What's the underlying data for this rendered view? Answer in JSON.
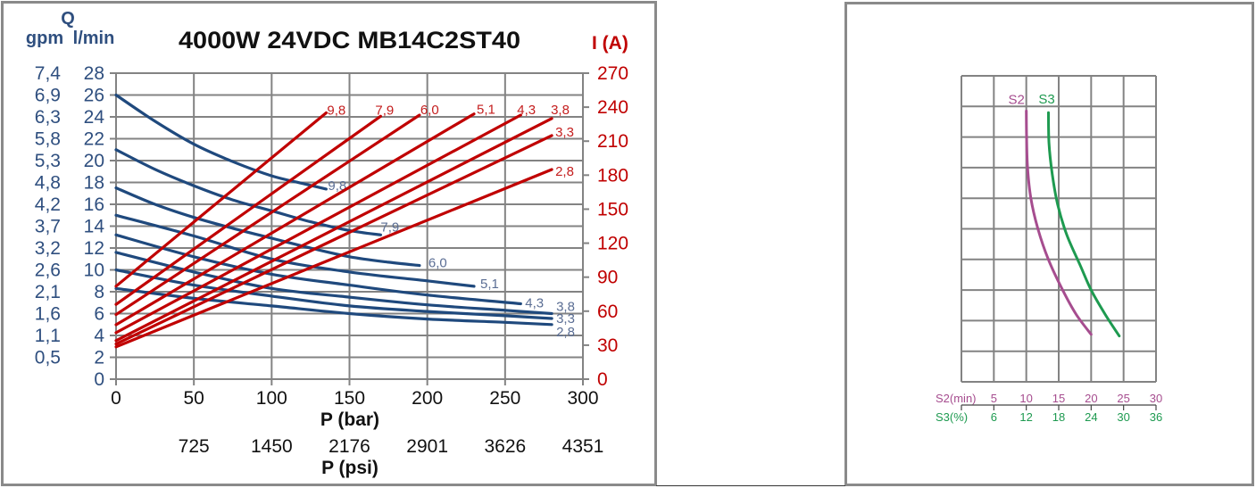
{
  "colors": {
    "flow_axis": "#2f4f7f",
    "current_axis": "#c00000",
    "flow_curve": "#1f497d",
    "current_curve": "#c00000",
    "flow_label": "#5b6e94",
    "current_label": "#c41e1e",
    "s2": "#a64d8f",
    "s3": "#1e9a50",
    "grid": "#838383",
    "panel_border": "#8a8a8a"
  },
  "chart_data": [
    {
      "type": "line",
      "title": "4000W 24VDC MB14C2ST40",
      "xlabel": "P (bar)",
      "x2label": "P (psi)",
      "ylabel": "Q",
      "ylabel_units": [
        "gpm",
        "l/min"
      ],
      "y2label": "I (A)",
      "xlim": [
        0,
        300
      ],
      "ylim": [
        0,
        28
      ],
      "y2lim": [
        0,
        270
      ],
      "grid": true,
      "x_ticks": [
        "0",
        "50",
        "100",
        "150",
        "200",
        "250",
        "300"
      ],
      "x2_ticks": [
        "",
        "725",
        "1450",
        "2176",
        "2901",
        "3626",
        "4351"
      ],
      "y_ticks_lpm": [
        "0",
        "2",
        "4",
        "6",
        "8",
        "10",
        "12",
        "14",
        "16",
        "18",
        "20",
        "22",
        "24",
        "26",
        "28"
      ],
      "y_ticks_gpm": [
        "",
        "0,5",
        "1,1",
        "1,6",
        "2,1",
        "2,6",
        "3,2",
        "3,7",
        "4,2",
        "4,8",
        "5,3",
        "5,8",
        "6,3",
        "6,9",
        "7,4"
      ],
      "y2_ticks": [
        "0",
        "30",
        "60",
        "90",
        "120",
        "150",
        "180",
        "210",
        "240",
        "270"
      ],
      "series": [
        {
          "name": "9,8",
          "kind": "flow",
          "axis": "left",
          "color": "#1f497d",
          "label_color": "#5b6e94",
          "label_offset": [
            2,
            1
          ],
          "points": [
            [
              0,
              26
            ],
            [
              25,
              23.6
            ],
            [
              50,
              21.5
            ],
            [
              75,
              19.9
            ],
            [
              100,
              18.6
            ],
            [
              120,
              17.9
            ],
            [
              135,
              17.4
            ]
          ]
        },
        {
          "name": "7,9",
          "kind": "flow",
          "axis": "left",
          "color": "#1f497d",
          "label_color": "#5b6e94",
          "label_offset": [
            0,
            -4
          ],
          "points": [
            [
              0,
              21
            ],
            [
              25,
              19.2
            ],
            [
              50,
              17.7
            ],
            [
              75,
              16.4
            ],
            [
              100,
              15.4
            ],
            [
              125,
              14.4
            ],
            [
              150,
              13.6
            ],
            [
              170,
              13.2
            ]
          ]
        },
        {
          "name": "6,0",
          "kind": "flow",
          "axis": "left",
          "color": "#1f497d",
          "label_color": "#5b6e94",
          "label_offset": [
            10,
            2
          ],
          "points": [
            [
              0,
              17.5
            ],
            [
              25,
              16.0
            ],
            [
              50,
              14.8
            ],
            [
              75,
              13.8
            ],
            [
              100,
              12.9
            ],
            [
              125,
              12.0
            ],
            [
              150,
              11.2
            ],
            [
              175,
              10.7
            ],
            [
              195,
              10.4
            ]
          ]
        },
        {
          "name": "5,1",
          "kind": "flow",
          "axis": "left",
          "color": "#1f497d",
          "label_color": "#5b6e94",
          "label_offset": [
            7,
            2
          ],
          "points": [
            [
              0,
              15
            ],
            [
              50,
              13.1
            ],
            [
              100,
              11.0
            ],
            [
              150,
              9.8
            ],
            [
              200,
              9.0
            ],
            [
              230,
              8.5
            ]
          ]
        },
        {
          "name": "4,3",
          "kind": "flow",
          "axis": "left",
          "color": "#1f497d",
          "label_color": "#5b6e94",
          "label_offset": [
            5,
            4
          ],
          "points": [
            [
              0,
              13.2
            ],
            [
              50,
              11.2
            ],
            [
              100,
              9.6
            ],
            [
              150,
              8.6
            ],
            [
              200,
              7.7
            ],
            [
              260,
              6.9
            ]
          ]
        },
        {
          "name": "3,8",
          "kind": "flow",
          "axis": "left",
          "color": "#1f497d",
          "label_color": "#5b6e94",
          "label_offset": [
            5,
            -3
          ],
          "points": [
            [
              0,
              11.6
            ],
            [
              50,
              9.8
            ],
            [
              100,
              8.3
            ],
            [
              150,
              7.5
            ],
            [
              200,
              6.8
            ],
            [
              250,
              6.3
            ],
            [
              280,
              6.0
            ]
          ]
        },
        {
          "name": "3,3",
          "kind": "flow",
          "axis": "left",
          "color": "#1f497d",
          "label_color": "#5b6e94",
          "label_offset": [
            5,
            5
          ],
          "points": [
            [
              0,
              10
            ],
            [
              50,
              8.6
            ],
            [
              100,
              7.6
            ],
            [
              150,
              6.7
            ],
            [
              200,
              6.2
            ],
            [
              250,
              5.8
            ],
            [
              280,
              5.55
            ]
          ]
        },
        {
          "name": "2,8",
          "kind": "flow",
          "axis": "left",
          "color": "#1f497d",
          "label_color": "#5b6e94",
          "label_offset": [
            5,
            13
          ],
          "points": [
            [
              0,
              8.3
            ],
            [
              50,
              7.4
            ],
            [
              100,
              6.7
            ],
            [
              150,
              6.0
            ],
            [
              200,
              5.5
            ],
            [
              250,
              5.2
            ],
            [
              280,
              5.0
            ]
          ]
        },
        {
          "name": "9,8",
          "kind": "current",
          "axis": "right",
          "color": "#c00000",
          "label_color": "#c41e1e",
          "label_offset": [
            1,
            2
          ],
          "points": [
            [
              0,
              82
            ],
            [
              135,
              235
            ]
          ]
        },
        {
          "name": "7,9",
          "kind": "current",
          "axis": "right",
          "color": "#c00000",
          "label_color": "#c41e1e",
          "label_offset": [
            -6,
            -2
          ],
          "points": [
            [
              0,
              66
            ],
            [
              170,
              232
            ]
          ]
        },
        {
          "name": "6,0",
          "kind": "current",
          "axis": "right",
          "color": "#c00000",
          "label_color": "#c41e1e",
          "label_offset": [
            1,
            -1
          ],
          "points": [
            [
              0,
              57
            ],
            [
              195,
              233
            ]
          ]
        },
        {
          "name": "5,1",
          "kind": "current",
          "axis": "right",
          "color": "#c00000",
          "label_color": "#c41e1e",
          "label_offset": [
            3,
            0
          ],
          "points": [
            [
              0,
              48
            ],
            [
              230,
              234
            ]
          ]
        },
        {
          "name": "4,3",
          "kind": "current",
          "axis": "right",
          "color": "#c00000",
          "label_color": "#c41e1e",
          "label_offset": [
            -4,
            -1
          ],
          "points": [
            [
              0,
              41
            ],
            [
              260,
              233
            ]
          ]
        },
        {
          "name": "3,8",
          "kind": "current",
          "axis": "right",
          "color": "#c00000",
          "label_color": "#c41e1e",
          "label_offset": [
            -1,
            -5
          ],
          "points": [
            [
              0,
              34
            ],
            [
              280,
              230
            ]
          ]
        },
        {
          "name": "3,3",
          "kind": "current",
          "axis": "right",
          "color": "#c00000",
          "label_color": "#c41e1e",
          "label_offset": [
            4,
            1
          ],
          "points": [
            [
              0,
              31
            ],
            [
              280,
              215
            ]
          ]
        },
        {
          "name": "2,8",
          "kind": "current",
          "axis": "right",
          "color": "#c00000",
          "label_color": "#c41e1e",
          "label_offset": [
            4,
            7
          ],
          "points": [
            [
              0,
              28.5
            ],
            [
              280,
              185
            ]
          ]
        }
      ]
    },
    {
      "type": "line",
      "title": "",
      "grid": {
        "cols": 6,
        "rows": 10
      },
      "y_axis": "unlabeled (values given as grid rows from top)",
      "x_axes": [
        {
          "label": "S2(min)",
          "range": [
            0,
            30
          ],
          "ticks": [
            "5",
            "10",
            "15",
            "20",
            "25",
            "30"
          ],
          "color": "#a64d8f"
        },
        {
          "label": "S3(%)",
          "range": [
            0,
            36
          ],
          "ticks": [
            "6",
            "12",
            "18",
            "24",
            "30",
            "36"
          ],
          "color": "#1e9a50"
        }
      ],
      "series": [
        {
          "name": "S2",
          "axis_index": 0,
          "color": "#a64d8f",
          "label_offset": [
            -11,
            -8
          ],
          "points": [
            [
              10.0,
              1.15
            ],
            [
              10.05,
              2.0
            ],
            [
              10.2,
              3.0
            ],
            [
              10.7,
              4.0
            ],
            [
              11.8,
              5.0
            ],
            [
              13.4,
              6.0
            ],
            [
              15.6,
              7.0
            ],
            [
              17.7,
              7.8
            ],
            [
              20.0,
              8.45
            ]
          ]
        },
        {
          "name": "S3",
          "axis_index": 1,
          "color": "#1e9a50",
          "label_offset": [
            -2,
            -10
          ],
          "points": [
            [
              16.1,
              1.2
            ],
            [
              16.2,
              2.2
            ],
            [
              16.8,
              3.2
            ],
            [
              17.8,
              4.2
            ],
            [
              19.5,
              5.2
            ],
            [
              22.0,
              6.2
            ],
            [
              24.0,
              7.0
            ],
            [
              26.6,
              7.8
            ],
            [
              29.2,
              8.5
            ]
          ]
        }
      ]
    }
  ]
}
